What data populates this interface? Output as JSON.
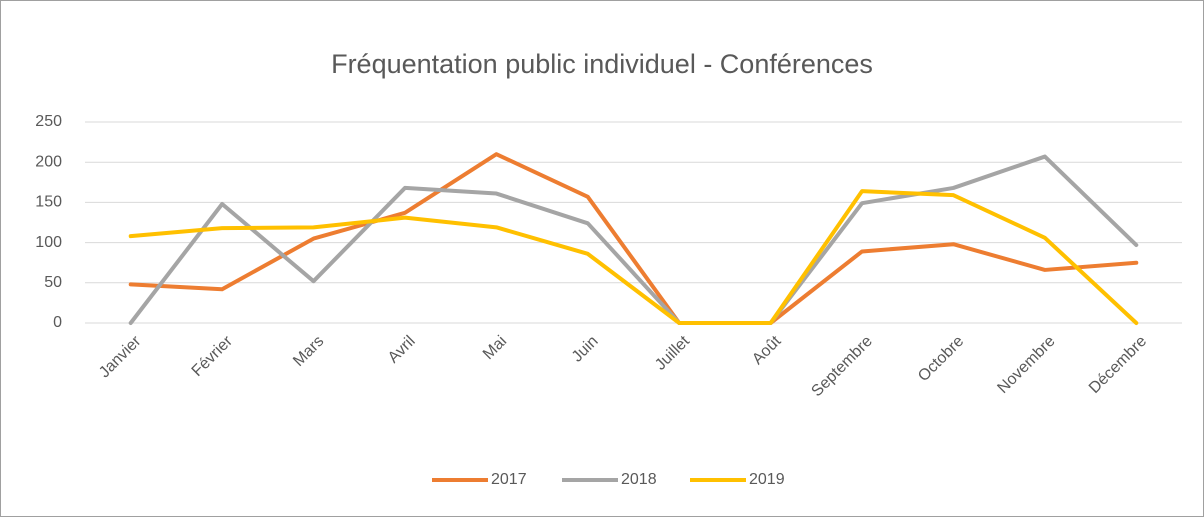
{
  "chart_data": {
    "type": "line",
    "title": "Fréquentation public individuel - Conférences",
    "categories": [
      "Janvier",
      "Février",
      "Mars",
      "Avril",
      "Mai",
      "Juin",
      "Juillet",
      "Août",
      "Septembre",
      "Octobre",
      "Novembre",
      "Décembre"
    ],
    "series": [
      {
        "name": "2017",
        "color": "#ED7D31",
        "values": [
          48,
          42,
          105,
          137,
          210,
          157,
          0,
          0,
          89,
          98,
          66,
          75
        ]
      },
      {
        "name": "2018",
        "color": "#A5A5A5",
        "values": [
          0,
          148,
          52,
          168,
          161,
          124,
          0,
          0,
          149,
          168,
          207,
          97
        ]
      },
      {
        "name": "2019",
        "color": "#FFC000",
        "values": [
          108,
          118,
          119,
          131,
          119,
          86,
          0,
          0,
          164,
          159,
          106,
          0
        ]
      }
    ],
    "ylim": [
      0,
      250
    ],
    "yticks": [
      0,
      50,
      100,
      150,
      200,
      250
    ],
    "grid": true,
    "legend": "bottom"
  }
}
